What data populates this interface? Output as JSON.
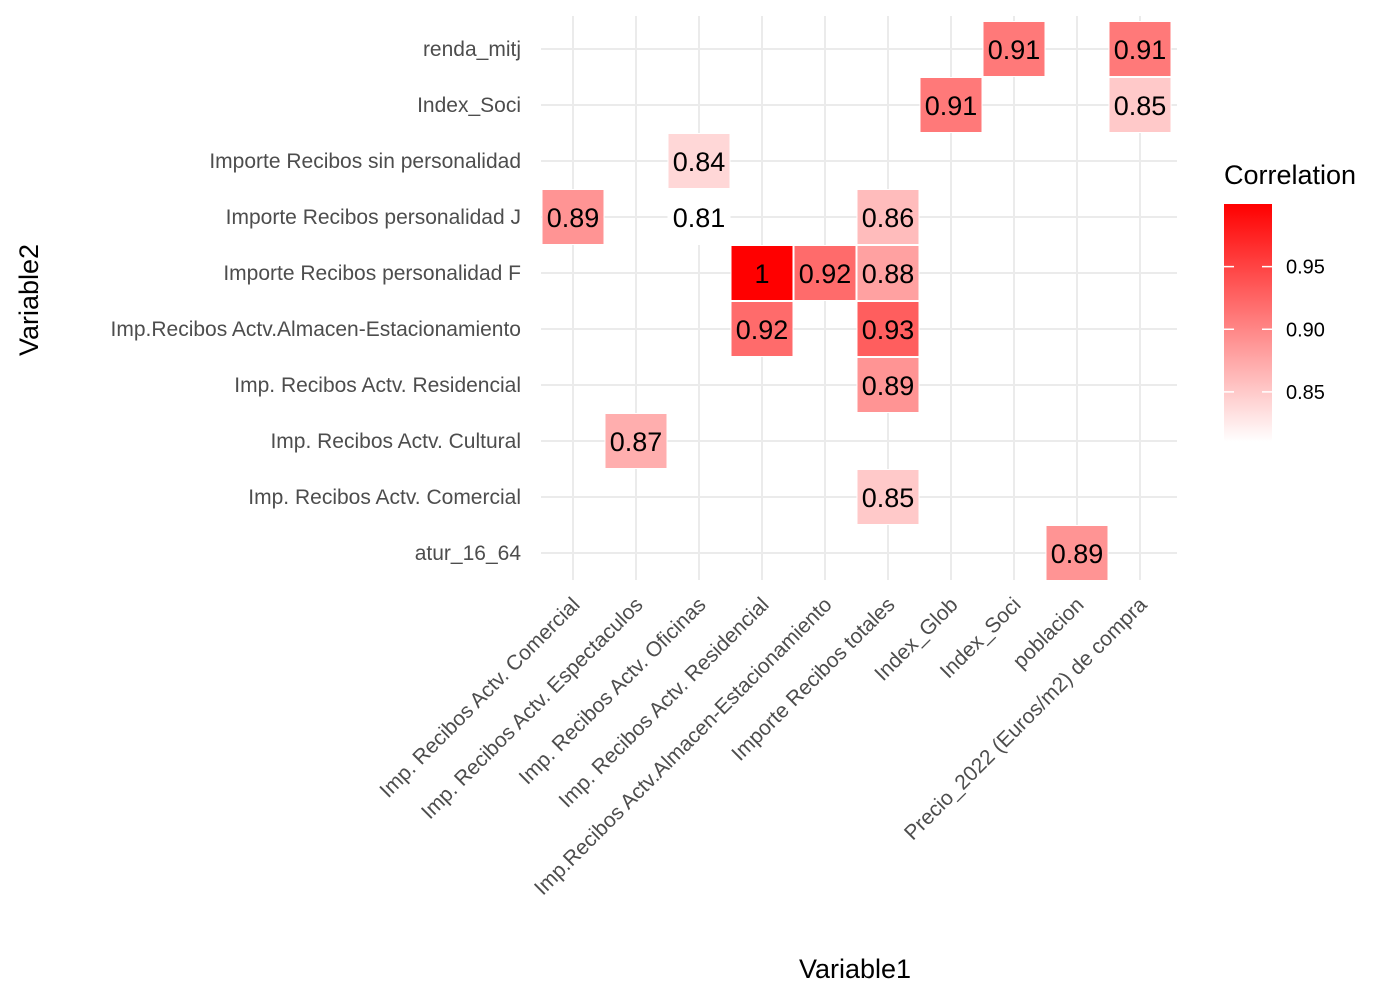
{
  "chart_data": {
    "type": "heatmap",
    "xlabel": "Variable1",
    "ylabel": "Variable2",
    "x_categories": [
      "Imp. Recibos Actv. Comercial",
      "Imp. Recibos Actv. Espectaculos",
      "Imp. Recibos Actv. Oficinas",
      "Imp. Recibos Actv. Residencial",
      "Imp.Recibos Actv.Almacen-Estacionamiento",
      "Importe Recibos totales",
      "Index_Glob",
      "Index_Soci",
      "poblacion",
      "Precio_2022 (Euros/m2) de compra"
    ],
    "y_categories": [
      "atur_16_64",
      "Imp. Recibos Actv. Comercial",
      "Imp. Recibos Actv. Cultural",
      "Imp. Recibos Actv. Residencial",
      "Imp.Recibos Actv.Almacen-Estacionamiento",
      "Importe Recibos personalidad F",
      "Importe Recibos personalidad J",
      "Importe Recibos sin personalidad",
      "Index_Soci",
      "renda_mitj"
    ],
    "cells": [
      {
        "x": "Index_Soci",
        "y": "renda_mitj",
        "value": 0.91,
        "label": "0.91"
      },
      {
        "x": "Precio_2022 (Euros/m2) de compra",
        "y": "renda_mitj",
        "value": 0.91,
        "label": "0.91"
      },
      {
        "x": "Index_Glob",
        "y": "Index_Soci",
        "value": 0.91,
        "label": "0.91"
      },
      {
        "x": "Precio_2022 (Euros/m2) de compra",
        "y": "Index_Soci",
        "value": 0.85,
        "label": "0.85"
      },
      {
        "x": "Imp. Recibos Actv. Oficinas",
        "y": "Importe Recibos sin personalidad",
        "value": 0.84,
        "label": "0.84"
      },
      {
        "x": "Imp. Recibos Actv. Comercial",
        "y": "Importe Recibos personalidad J",
        "value": 0.89,
        "label": "0.89"
      },
      {
        "x": "Imp. Recibos Actv. Oficinas",
        "y": "Importe Recibos personalidad J",
        "value": 0.81,
        "label": "0.81"
      },
      {
        "x": "Importe Recibos totales",
        "y": "Importe Recibos personalidad J",
        "value": 0.86,
        "label": "0.86"
      },
      {
        "x": "Imp. Recibos Actv. Residencial",
        "y": "Importe Recibos personalidad F",
        "value": 1.0,
        "label": "1"
      },
      {
        "x": "Imp.Recibos Actv.Almacen-Estacionamiento",
        "y": "Importe Recibos personalidad F",
        "value": 0.92,
        "label": "0.92"
      },
      {
        "x": "Importe Recibos totales",
        "y": "Importe Recibos personalidad F",
        "value": 0.88,
        "label": "0.88"
      },
      {
        "x": "Imp. Recibos Actv. Residencial",
        "y": "Imp.Recibos Actv.Almacen-Estacionamiento",
        "value": 0.92,
        "label": "0.92"
      },
      {
        "x": "Importe Recibos totales",
        "y": "Imp.Recibos Actv.Almacen-Estacionamiento",
        "value": 0.93,
        "label": "0.93"
      },
      {
        "x": "Importe Recibos totales",
        "y": "Imp. Recibos Actv. Residencial",
        "value": 0.89,
        "label": "0.89"
      },
      {
        "x": "Imp. Recibos Actv. Espectaculos",
        "y": "Imp. Recibos Actv. Cultural",
        "value": 0.87,
        "label": "0.87"
      },
      {
        "x": "Importe Recibos totales",
        "y": "Imp. Recibos Actv. Comercial",
        "value": 0.85,
        "label": "0.85"
      },
      {
        "x": "poblacion",
        "y": "atur_16_64",
        "value": 0.89,
        "label": "0.89"
      }
    ],
    "legend": {
      "title": "Correlation",
      "min": 0.81,
      "max": 1.0,
      "low_color": "#ffffff",
      "high_color": "#ff0000",
      "ticks": [
        {
          "value": 0.85,
          "label": "0.85"
        },
        {
          "value": 0.9,
          "label": "0.90"
        },
        {
          "value": 0.95,
          "label": "0.95"
        }
      ],
      "placement": "right"
    },
    "grid": true
  }
}
